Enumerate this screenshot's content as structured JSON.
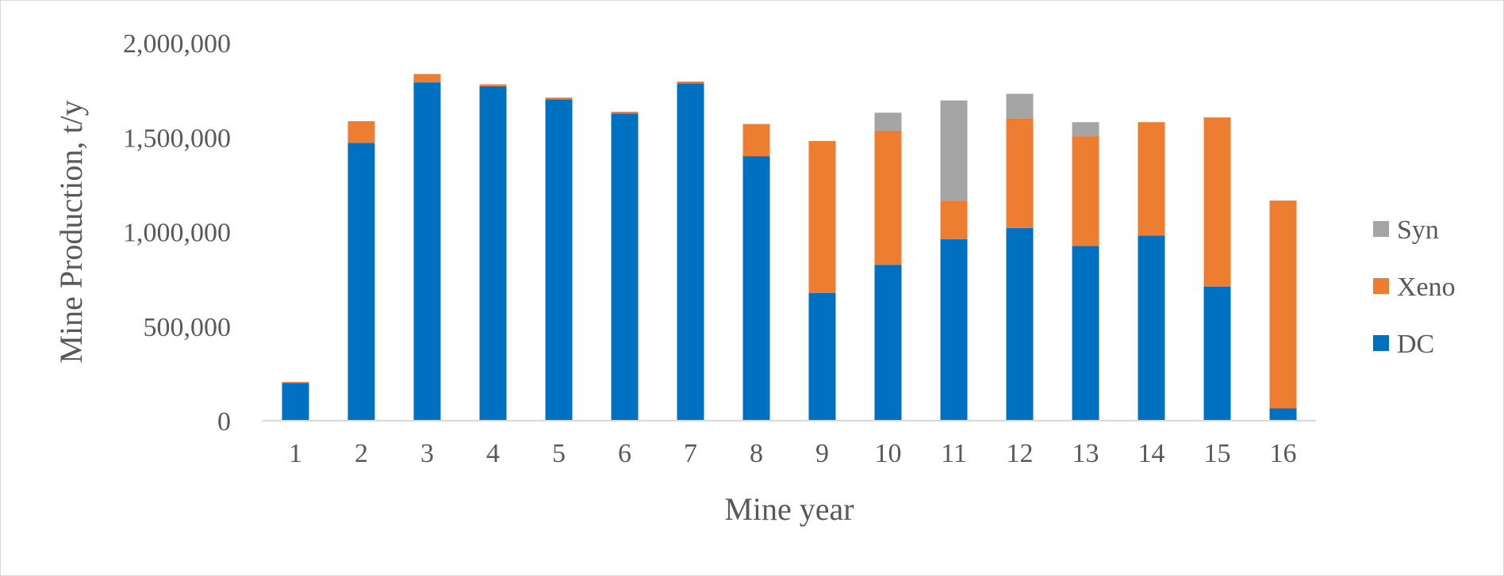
{
  "chart_data": {
    "type": "bar",
    "stacked": true,
    "title": "",
    "xlabel": "Mine year",
    "ylabel": "Mine Production, t/y",
    "ylim": [
      0,
      2000000
    ],
    "yticks": [
      0,
      500000,
      1000000,
      1500000,
      2000000
    ],
    "ytick_labels": [
      "0",
      "500,000",
      "1,000,000",
      "1,500,000",
      "2,000,000"
    ],
    "grid": false,
    "legend_position": "right",
    "categories": [
      "1",
      "2",
      "3",
      "4",
      "5",
      "6",
      "7",
      "8",
      "9",
      "10",
      "11",
      "12",
      "13",
      "14",
      "15",
      "16"
    ],
    "series": [
      {
        "name": "DC",
        "color": "#0070c0",
        "values": [
          200000,
          1470000,
          1790000,
          1770000,
          1700000,
          1625000,
          1785000,
          1400000,
          675000,
          825000,
          960000,
          1020000,
          925000,
          980000,
          710000,
          65000
        ]
      },
      {
        "name": "Xeno",
        "color": "#ed7d31",
        "values": [
          5000,
          115000,
          45000,
          10000,
          10000,
          10000,
          10000,
          170000,
          805000,
          710000,
          205000,
          580000,
          580000,
          600000,
          895000,
          1100000
        ]
      },
      {
        "name": "Syn",
        "color": "#a5a5a5",
        "values": [
          0,
          0,
          0,
          0,
          0,
          0,
          0,
          0,
          0,
          95000,
          530000,
          130000,
          75000,
          0,
          0,
          0
        ]
      }
    ],
    "legend_order": [
      "Syn",
      "Xeno",
      "DC"
    ]
  }
}
